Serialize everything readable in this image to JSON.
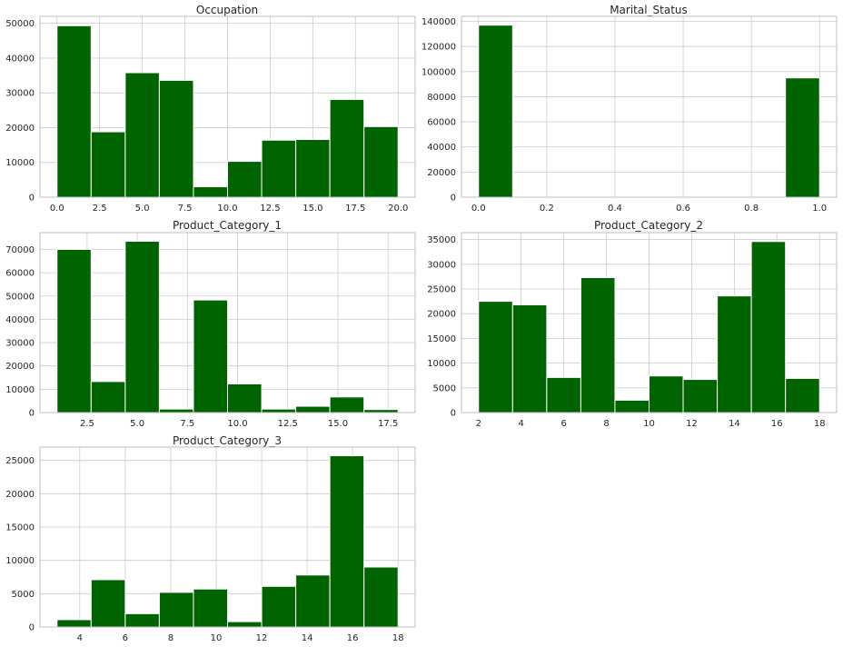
{
  "colors": {
    "bar_fill": "#006400",
    "bar_edge": "#ffffff",
    "grid": "#cccccc",
    "axes_edge": "#bfbfbf",
    "background": "#ffffff"
  },
  "chart_data": [
    {
      "type": "bar",
      "title": "Occupation",
      "xlabel": "",
      "ylabel": "",
      "bin_edges": [
        0,
        2,
        4,
        6,
        8,
        10,
        12,
        14,
        16,
        18,
        20
      ],
      "values": [
        49300,
        18800,
        35800,
        33600,
        3000,
        10300,
        16400,
        16600,
        28100,
        20300
      ],
      "xlim": [
        -1,
        21
      ],
      "ylim": [
        0,
        52000
      ],
      "xticks": [
        0.0,
        2.5,
        5.0,
        7.5,
        10.0,
        12.5,
        15.0,
        17.5,
        20.0
      ],
      "xtick_labels": [
        "0.0",
        "2.5",
        "5.0",
        "7.5",
        "10.0",
        "12.5",
        "15.0",
        "17.5",
        "20.0"
      ],
      "yticks": [
        0,
        10000,
        20000,
        30000,
        40000,
        50000
      ],
      "ytick_labels": [
        "0",
        "10000",
        "20000",
        "30000",
        "40000",
        "50000"
      ],
      "grid": true
    },
    {
      "type": "bar",
      "title": "Marital_Status",
      "xlabel": "",
      "ylabel": "",
      "bin_edges": [
        0.0,
        0.1,
        0.2,
        0.3,
        0.4,
        0.5,
        0.6,
        0.7,
        0.8,
        0.9,
        1.0
      ],
      "values": [
        137000,
        0,
        0,
        0,
        0,
        0,
        0,
        0,
        0,
        95000
      ],
      "xlim": [
        -0.05,
        1.05
      ],
      "ylim": [
        0,
        144000
      ],
      "xticks": [
        0.0,
        0.2,
        0.4,
        0.6,
        0.8,
        1.0
      ],
      "xtick_labels": [
        "0.0",
        "0.2",
        "0.4",
        "0.6",
        "0.8",
        "1.0"
      ],
      "yticks": [
        0,
        20000,
        40000,
        60000,
        80000,
        100000,
        120000,
        140000
      ],
      "ytick_labels": [
        "0",
        "20000",
        "40000",
        "60000",
        "80000",
        "100000",
        "120000",
        "140000"
      ],
      "grid": true
    },
    {
      "type": "bar",
      "title": "Product_Category_1",
      "xlabel": "",
      "ylabel": "",
      "bin_edges": [
        1.0,
        2.7,
        4.4,
        6.1,
        7.8,
        9.5,
        11.2,
        12.9,
        14.6,
        16.3,
        18.0
      ],
      "values": [
        70000,
        13300,
        73500,
        1500,
        48300,
        12300,
        1500,
        2700,
        6700,
        1300
      ],
      "xlim": [
        0.15,
        18.85
      ],
      "ylim": [
        0,
        77200
      ],
      "xticks": [
        2.5,
        5.0,
        7.5,
        10.0,
        12.5,
        15.0,
        17.5
      ],
      "xtick_labels": [
        "2.5",
        "5.0",
        "7.5",
        "10.0",
        "12.5",
        "15.0",
        "17.5"
      ],
      "yticks": [
        0,
        10000,
        20000,
        30000,
        40000,
        50000,
        60000,
        70000
      ],
      "ytick_labels": [
        "0",
        "10000",
        "20000",
        "30000",
        "40000",
        "50000",
        "60000",
        "70000"
      ],
      "grid": true
    },
    {
      "type": "bar",
      "title": "Product_Category_2",
      "xlabel": "",
      "ylabel": "",
      "bin_edges": [
        2.0,
        3.6,
        5.2,
        6.8,
        8.4,
        10.0,
        11.6,
        13.2,
        14.8,
        16.4,
        18.0
      ],
      "values": [
        22500,
        21800,
        7100,
        27300,
        2500,
        7400,
        6700,
        23600,
        34600,
        6900
      ],
      "xlim": [
        1.2,
        18.8
      ],
      "ylim": [
        0,
        36400
      ],
      "xticks": [
        2,
        4,
        6,
        8,
        10,
        12,
        14,
        16,
        18
      ],
      "xtick_labels": [
        "2",
        "4",
        "6",
        "8",
        "10",
        "12",
        "14",
        "16",
        "18"
      ],
      "yticks": [
        0,
        5000,
        10000,
        15000,
        20000,
        25000,
        30000,
        35000
      ],
      "ytick_labels": [
        "0",
        "5000",
        "10000",
        "15000",
        "20000",
        "25000",
        "30000",
        "35000"
      ],
      "grid": true
    },
    {
      "type": "bar",
      "title": "Product_Category_3",
      "xlabel": "",
      "ylabel": "",
      "bin_edges": [
        3.0,
        4.5,
        6.0,
        7.5,
        9.0,
        10.5,
        12.0,
        13.5,
        15.0,
        16.5,
        18.0
      ],
      "values": [
        1100,
        7100,
        2000,
        5200,
        5700,
        800,
        6100,
        7800,
        25700,
        9000
      ],
      "xlim": [
        2.25,
        18.75
      ],
      "ylim": [
        0,
        27000
      ],
      "xticks": [
        4,
        6,
        8,
        10,
        12,
        14,
        16,
        18
      ],
      "xtick_labels": [
        "4",
        "6",
        "8",
        "10",
        "12",
        "14",
        "16",
        "18"
      ],
      "yticks": [
        0,
        5000,
        10000,
        15000,
        20000,
        25000
      ],
      "ytick_labels": [
        "0",
        "5000",
        "10000",
        "15000",
        "20000",
        "25000"
      ],
      "grid": true
    }
  ]
}
